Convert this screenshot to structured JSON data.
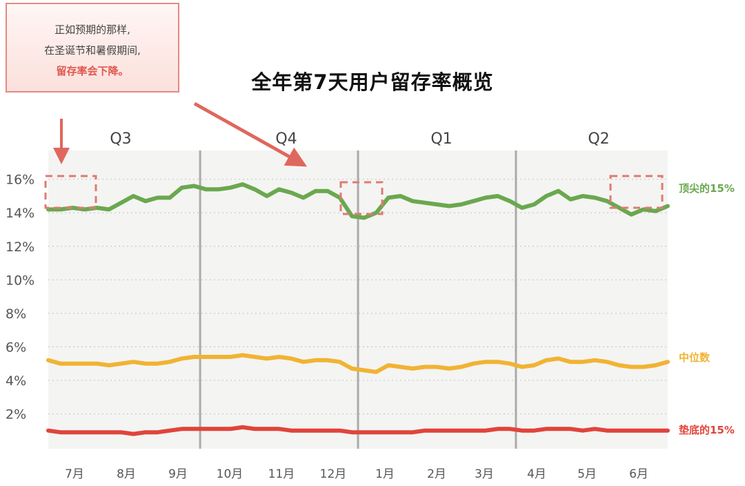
{
  "callout": {
    "line1": "正如预期的那样,",
    "line2": "在圣诞节和暑假期间,",
    "line3": "留存率会下降。"
  },
  "chart_data": {
    "type": "line",
    "title": "全年第7天用户留存率概览",
    "ylim": [
      0,
      17
    ],
    "yticks": [
      "16%",
      "14%",
      "12%",
      "10%",
      "8%",
      "6%",
      "4%",
      "2%"
    ],
    "ytick_values": [
      16,
      14,
      12,
      10,
      8,
      6,
      4,
      2
    ],
    "grid": true,
    "quarters": [
      "Q3",
      "Q4",
      "Q1",
      "Q2"
    ],
    "months": [
      "7月",
      "8月",
      "9月",
      "10月",
      "11月",
      "12月",
      "1月",
      "2月",
      "3月",
      "4月",
      "5月",
      "6月"
    ],
    "series": [
      {
        "name": "顶尖的15%",
        "color": "#6aa84f",
        "values": [
          14.2,
          14.2,
          14.3,
          14.2,
          14.3,
          14.2,
          14.6,
          15.0,
          14.7,
          14.9,
          14.9,
          15.5,
          15.6,
          15.4,
          15.4,
          15.5,
          15.7,
          15.4,
          15.0,
          15.4,
          15.2,
          14.9,
          15.3,
          15.3,
          14.9,
          13.8,
          13.7,
          14.0,
          14.9,
          15.0,
          14.7,
          14.6,
          14.5,
          14.4,
          14.5,
          14.7,
          14.9,
          15.0,
          14.7,
          14.3,
          14.5,
          15.0,
          15.3,
          14.8,
          15.0,
          14.9,
          14.7,
          14.3,
          13.9,
          14.2,
          14.1,
          14.4
        ]
      },
      {
        "name": "中位数",
        "color": "#f1b333",
        "values": [
          5.2,
          5.0,
          5.0,
          5.0,
          5.0,
          4.9,
          5.0,
          5.1,
          5.0,
          5.0,
          5.1,
          5.3,
          5.4,
          5.4,
          5.4,
          5.4,
          5.5,
          5.4,
          5.3,
          5.4,
          5.3,
          5.1,
          5.2,
          5.2,
          5.1,
          4.7,
          4.6,
          4.5,
          4.9,
          4.8,
          4.7,
          4.8,
          4.8,
          4.7,
          4.8,
          5.0,
          5.1,
          5.1,
          5.0,
          4.8,
          4.9,
          5.2,
          5.3,
          5.1,
          5.1,
          5.2,
          5.1,
          4.9,
          4.8,
          4.8,
          4.9,
          5.1
        ]
      },
      {
        "name": "垫底的15%",
        "color": "#e0443b",
        "values": [
          1.0,
          0.9,
          0.9,
          0.9,
          0.9,
          0.9,
          0.9,
          0.8,
          0.9,
          0.9,
          1.0,
          1.1,
          1.1,
          1.1,
          1.1,
          1.1,
          1.2,
          1.1,
          1.1,
          1.1,
          1.0,
          1.0,
          1.0,
          1.0,
          1.0,
          0.9,
          0.9,
          0.9,
          0.9,
          0.9,
          0.9,
          1.0,
          1.0,
          1.0,
          1.0,
          1.0,
          1.0,
          1.1,
          1.1,
          1.0,
          1.0,
          1.1,
          1.1,
          1.1,
          1.0,
          1.1,
          1.0,
          1.0,
          1.0,
          1.0,
          1.0,
          1.0
        ]
      }
    ],
    "highlight_ranges": [
      [
        0,
        4
      ],
      [
        24,
        27
      ],
      [
        46,
        50
      ]
    ]
  }
}
